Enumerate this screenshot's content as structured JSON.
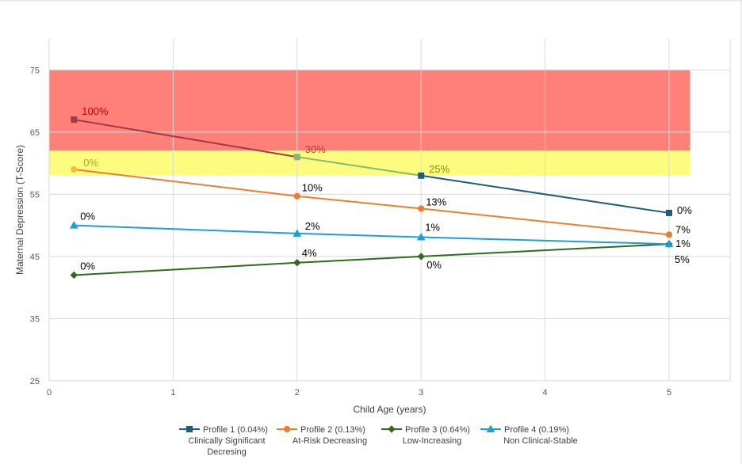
{
  "chart_data": {
    "type": "line",
    "title": "",
    "xlabel": "Child Age (years)",
    "ylabel": "Maternal Depression (T-Score)",
    "xlim": [
      0,
      5.5
    ],
    "ylim": [
      25,
      80
    ],
    "x_ticks": [
      "0",
      "1",
      "2",
      "3",
      "4",
      "5"
    ],
    "y_ticks": [
      "25",
      "35",
      "45",
      "55",
      "65",
      "75"
    ],
    "grid": true,
    "legend_position": "bottom",
    "bands": [
      {
        "name": "clinical-band",
        "from": 62,
        "to": 75,
        "color": "#ff7f79"
      },
      {
        "name": "at-risk-band",
        "from": 58,
        "to": 62,
        "color": "#fcfc7f"
      }
    ],
    "series": [
      {
        "name": "Profile 1 (0.04%)",
        "sublabel": "Clinically Significant Decresing",
        "marker": "square",
        "color": "#1f5c7a",
        "points": [
          {
            "x": 0.2,
            "y": 67,
            "label": "100%",
            "label_color": "#c00000",
            "seg_color": "#a23a48"
          },
          {
            "x": 2,
            "y": 61,
            "label": "30%",
            "label_color": "#c0392b",
            "seg_color": "#8ab873"
          },
          {
            "x": 3,
            "y": 58,
            "label": "25%",
            "label_color": "#8a8a20",
            "seg_color": "#1f5c7a"
          },
          {
            "x": 5,
            "y": 52,
            "label": "0%",
            "label_color": "#000000"
          }
        ]
      },
      {
        "name": "Profile 2 (0.13%)",
        "sublabel": "At-Risk Decreasing",
        "marker": "circle",
        "color": "#ed7d31",
        "points": [
          {
            "x": 0.2,
            "y": 59,
            "label": "0%",
            "label_color": "#a8a830"
          },
          {
            "x": 2,
            "y": 54.7,
            "label": "10%",
            "label_color": "#000000"
          },
          {
            "x": 3,
            "y": 52.7,
            "label": "13%",
            "label_color": "#000000"
          },
          {
            "x": 5,
            "y": 48.5,
            "label": "7%",
            "label_color": "#000000"
          }
        ]
      },
      {
        "name": "Profile 3 (0.64%)",
        "sublabel": "Low-Increasing",
        "marker": "diamond",
        "color": "#2e6b1f",
        "points": [
          {
            "x": 0.2,
            "y": 42,
            "label": "0%",
            "label_color": "#000000"
          },
          {
            "x": 2,
            "y": 44,
            "label": "4%",
            "label_color": "#000000"
          },
          {
            "x": 3,
            "y": 45,
            "label": "0%",
            "label_color": "#000000"
          },
          {
            "x": 5,
            "y": 47,
            "label": "5%",
            "label_color": "#000000"
          }
        ]
      },
      {
        "name": "Profile 4 (0.19%)",
        "sublabel": "Non Clinical-Stable",
        "marker": "triangle",
        "color": "#1c9fd8",
        "points": [
          {
            "x": 0.2,
            "y": 50,
            "label": "0%",
            "label_color": "#000000"
          },
          {
            "x": 2,
            "y": 48.7,
            "label": "2%",
            "label_color": "#000000"
          },
          {
            "x": 3,
            "y": 48.1,
            "label": "1%",
            "label_color": "#000000"
          },
          {
            "x": 5,
            "y": 47,
            "label": "1%",
            "label_color": "#000000"
          }
        ]
      }
    ]
  }
}
